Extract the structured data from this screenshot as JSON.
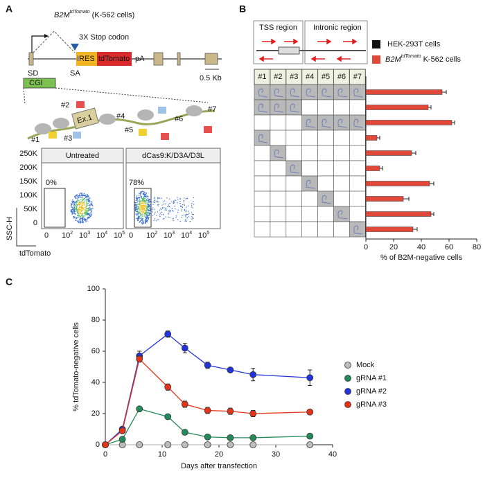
{
  "panel_labels": [
    "A",
    "B",
    "C"
  ],
  "panel_a": {
    "title": {
      "gene": "B2M",
      "sup": "tdTomato",
      "text": "(K-562 cells)"
    },
    "stop_codon": "3X Stop codon",
    "ires": "IRES",
    "reporter": "tdTomato",
    "pa": "pA",
    "sd": "SD",
    "sa": "SA",
    "scale": "0.5 Kb",
    "cgi": "CGI",
    "exon": "Ex.1",
    "guides": [
      "#1",
      "#2",
      "#3",
      "#4",
      "#5",
      "#6",
      "#7"
    ],
    "flow": {
      "yticks": [
        "250K",
        "200K",
        "150K",
        "100K",
        "50K",
        "0"
      ],
      "xticks": [
        {
          "base": "0"
        },
        {
          "base": "10",
          "sup": "2"
        },
        {
          "base": "10",
          "sup": "3"
        },
        {
          "base": "10",
          "sup": "4"
        },
        {
          "base": "10",
          "sup": "5"
        }
      ],
      "ylabel": "SSC-H",
      "xlabel": "tdTomato",
      "plots": [
        {
          "title": "Untreated",
          "gate": "0%"
        },
        {
          "title": "dCas9:K/D3A/D3L",
          "gate": "78%"
        }
      ]
    }
  },
  "panel_b": {
    "tss": "TSS region",
    "intron": "Intronic region",
    "legend": [
      {
        "text": "HEK-293T cells",
        "color": "#111111"
      },
      {
        "gene": "B2M",
        "sup": "tdTomato",
        "text": "K-562 cells",
        "color": "#e0493a"
      }
    ],
    "columns": [
      "#1",
      "#2",
      "#3",
      "#4",
      "#5",
      "#6",
      "#7"
    ],
    "matrix": [
      [
        1,
        1,
        1,
        1,
        1,
        1,
        1
      ],
      [
        1,
        1,
        1,
        0,
        0,
        0,
        0
      ],
      [
        0,
        0,
        0,
        1,
        1,
        1,
        1
      ],
      [
        1,
        0,
        0,
        0,
        0,
        0,
        0
      ],
      [
        0,
        1,
        0,
        0,
        0,
        0,
        0
      ],
      [
        0,
        0,
        1,
        0,
        0,
        0,
        0
      ],
      [
        0,
        0,
        0,
        1,
        0,
        0,
        0
      ],
      [
        0,
        0,
        0,
        0,
        1,
        0,
        0
      ],
      [
        0,
        0,
        0,
        0,
        0,
        1,
        0
      ],
      [
        0,
        0,
        0,
        0,
        0,
        0,
        1
      ]
    ]
  },
  "chart_data": [
    {
      "type": "bar",
      "orientation": "horizontal",
      "color": "#e0493a",
      "values": [
        55,
        45,
        62,
        8,
        33,
        10,
        46,
        27,
        47,
        34
      ],
      "errors": [
        3,
        2,
        2,
        2,
        3,
        2,
        3,
        4,
        2,
        3
      ],
      "xlim": [
        0,
        80
      ],
      "xticks": [
        0,
        20,
        40,
        60,
        80
      ],
      "xlabel": "% of B2M-negative cells"
    },
    {
      "type": "line",
      "x": [
        0,
        3,
        6,
        11,
        14,
        18,
        22,
        26,
        36
      ],
      "series": [
        {
          "name": "Mock",
          "color": "#bdbdbd",
          "values": [
            0,
            0,
            0,
            0,
            0,
            0,
            0,
            0,
            0
          ],
          "errors": [
            0,
            0,
            0,
            0,
            0,
            0,
            0,
            0,
            0
          ]
        },
        {
          "name": "gRNA #1",
          "color": "#238b5a",
          "values": [
            0,
            3.5,
            23,
            18,
            8,
            5,
            4.5,
            4.5,
            5.5
          ],
          "errors": [
            0,
            0.5,
            1,
            1,
            1,
            0.5,
            0.5,
            0.5,
            0.5
          ]
        },
        {
          "name": "gRNA #2",
          "color": "#2233dd",
          "values": [
            0,
            10,
            57,
            71,
            62,
            51,
            48,
            45,
            43
          ],
          "errors": [
            0,
            1,
            3,
            2,
            3,
            2,
            1,
            4,
            5
          ]
        },
        {
          "name": "gRNA #3",
          "color": "#e5341a",
          "values": [
            0,
            9,
            55,
            37,
            26,
            22,
            21.5,
            20,
            21
          ],
          "errors": [
            0,
            1,
            2,
            2,
            2,
            2,
            2,
            2,
            1.5
          ]
        }
      ],
      "xlim": [
        0,
        40
      ],
      "xticks": [
        0,
        10,
        20,
        30,
        40
      ],
      "ylim": [
        0,
        100
      ],
      "yticks": [
        0,
        20,
        40,
        60,
        80,
        100
      ],
      "xlabel": "Days after transfection",
      "ylabel": "% tdTomato-negative cells"
    }
  ]
}
